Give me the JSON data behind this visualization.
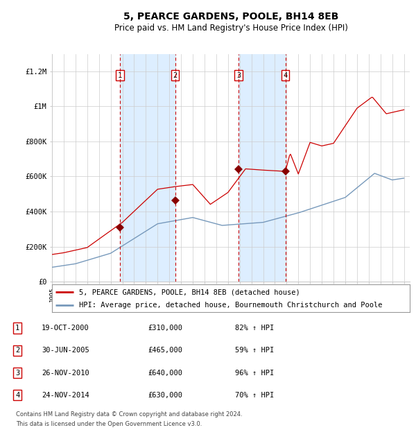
{
  "title": "5, PEARCE GARDENS, POOLE, BH14 8EB",
  "subtitle": "Price paid vs. HM Land Registry's House Price Index (HPI)",
  "legend_line1": "5, PEARCE GARDENS, POOLE, BH14 8EB (detached house)",
  "legend_line2": "HPI: Average price, detached house, Bournemouth Christchurch and Poole",
  "footer1": "Contains HM Land Registry data © Crown copyright and database right 2024.",
  "footer2": "This data is licensed under the Open Government Licence v3.0.",
  "transactions": [
    {
      "num": 1,
      "date": "2000-10-19",
      "price": 310000,
      "pct": 82,
      "direction": "↑"
    },
    {
      "num": 2,
      "date": "2005-06-30",
      "price": 465000,
      "pct": 59,
      "direction": "↑"
    },
    {
      "num": 3,
      "date": "2010-11-26",
      "price": 640000,
      "pct": 96,
      "direction": "↑"
    },
    {
      "num": 4,
      "date": "2014-11-24",
      "price": 630000,
      "pct": 70,
      "direction": "↑"
    }
  ],
  "table_dates": [
    "19-OCT-2000",
    "30-JUN-2005",
    "26-NOV-2010",
    "24-NOV-2014"
  ],
  "table_prices": [
    "£310,000",
    "£465,000",
    "£640,000",
    "£630,000"
  ],
  "table_pcts": [
    "82%",
    "59%",
    "96%",
    "70%"
  ],
  "red_line_color": "#cc0000",
  "blue_line_color": "#7799bb",
  "shade_color": "#ddeeff",
  "dashed_color": "#cc0000",
  "grid_color": "#cccccc",
  "background_color": "#ffffff",
  "ylim": [
    0,
    1300000
  ],
  "yticks": [
    0,
    200000,
    400000,
    600000,
    800000,
    1000000,
    1200000
  ],
  "ylabels": [
    "£0",
    "£200K",
    "£400K",
    "£600K",
    "£800K",
    "£1M",
    "£1.2M"
  ]
}
